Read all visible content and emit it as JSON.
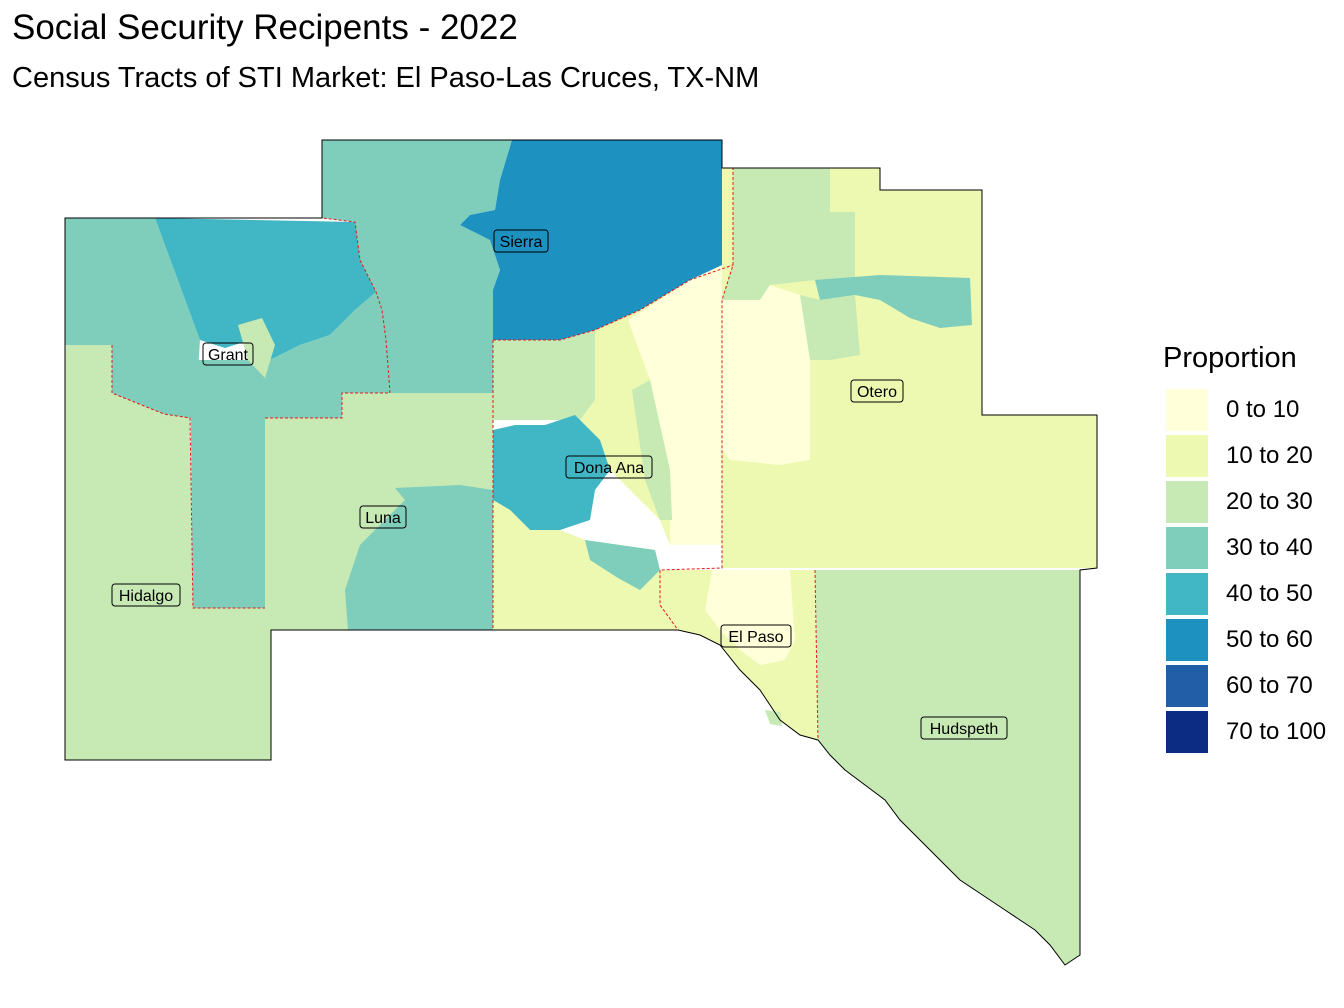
{
  "header": {
    "title": "Social Security Recipents - 2022",
    "subtitle": "Census Tracts of STI Market: El Paso-Las Cruces, TX-NM"
  },
  "legend": {
    "title": "Proportion",
    "items": [
      {
        "label": "0 to 10",
        "color": "#ffffd9"
      },
      {
        "label": "10 to 20",
        "color": "#edf8b1"
      },
      {
        "label": "20 to 30",
        "color": "#c7e9b4"
      },
      {
        "label": "30 to 40",
        "color": "#7fcdbb"
      },
      {
        "label": "40 to 50",
        "color": "#41b6c4"
      },
      {
        "label": "50 to 60",
        "color": "#1d91c0"
      },
      {
        "label": "60 to 70",
        "color": "#225ea8"
      },
      {
        "label": "70 to 100",
        "color": "#0c2c84"
      }
    ]
  },
  "counties": [
    {
      "name": "Sierra",
      "class": "50 to 60"
    },
    {
      "name": "Grant",
      "class": "30 to 40"
    },
    {
      "name": "Otero",
      "class": "10 to 20"
    },
    {
      "name": "Dona Ana",
      "class": "40 to 50"
    },
    {
      "name": "Luna",
      "class": "20 to 30"
    },
    {
      "name": "Hidalgo",
      "class": "20 to 30"
    },
    {
      "name": "El Paso",
      "class": "0 to 10"
    },
    {
      "name": "Hudspeth",
      "class": "20 to 30"
    }
  ],
  "styles": {
    "county_border": "#e31a1c",
    "outline": "#000000"
  }
}
